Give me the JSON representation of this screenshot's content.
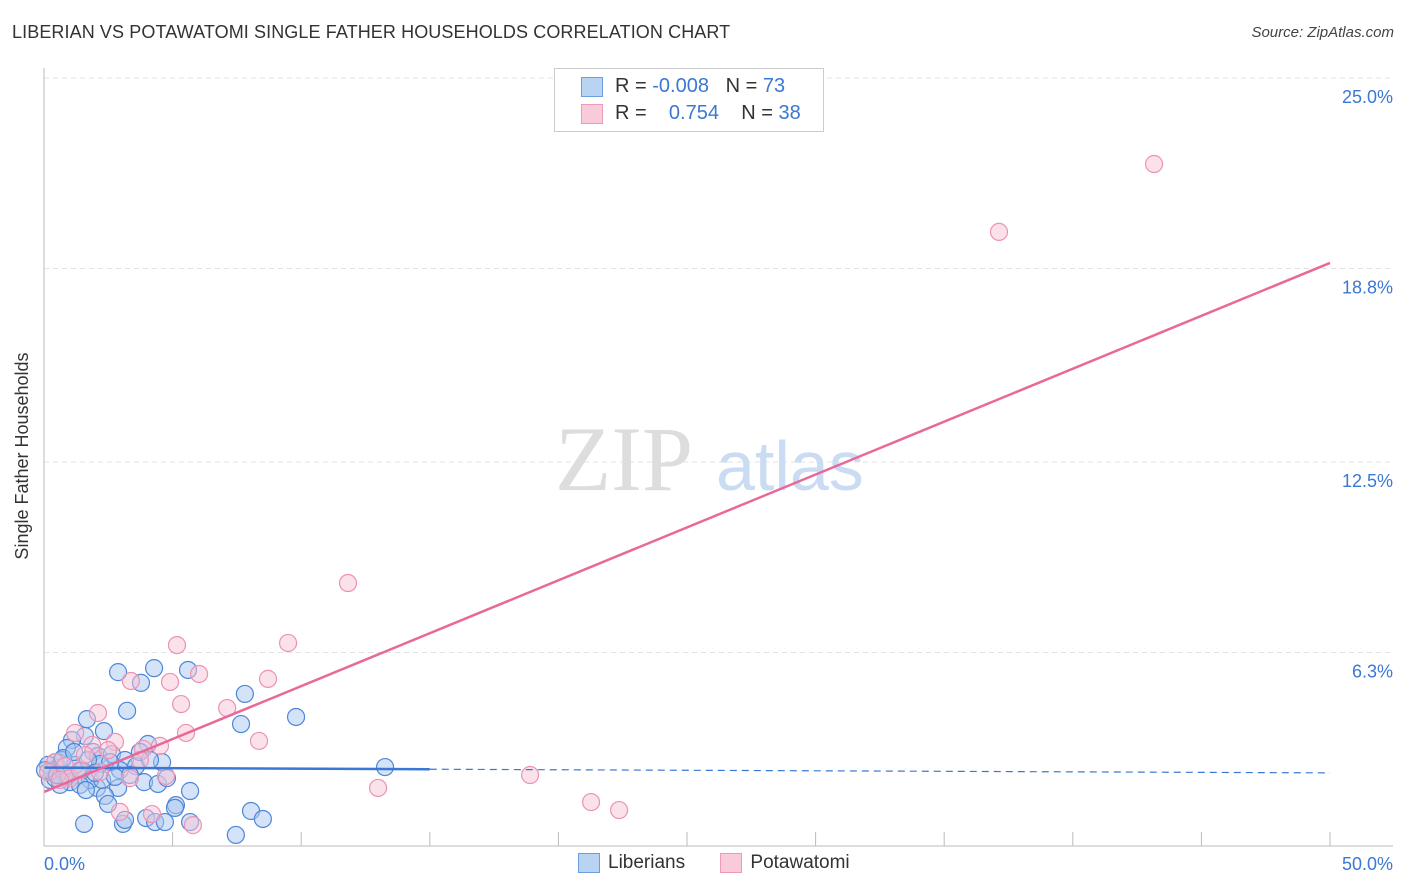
{
  "header": {
    "title": "LIBERIAN VS POTAWATOMI SINGLE FATHER HOUSEHOLDS CORRELATION CHART",
    "source": "Source: ZipAtlas.com"
  },
  "legend": {
    "rows": [
      {
        "r_label": "R =",
        "r_value": "-0.008",
        "n_label": "N =",
        "n_value": "73"
      },
      {
        "r_label": "R =",
        "r_value": "0.754",
        "n_label": "N =",
        "n_value": "38"
      }
    ]
  },
  "watermark": {
    "zip": "ZIP",
    "atlas": "atlas"
  },
  "colors": {
    "blue": "#3a78d4",
    "blue_fill": "#a9c8f0",
    "pink": "#e8689a",
    "pink_fill": "#f6bcd0",
    "tick_text": "#3a78d4"
  },
  "chart_data": {
    "type": "scatter",
    "title": "LIBERIAN VS POTAWATOMI SINGLE FATHER HOUSEHOLDS CORRELATION CHART",
    "xlabel": "",
    "ylabel": "Single Father Households",
    "xlim": [
      0,
      50
    ],
    "ylim": [
      0,
      25
    ],
    "x_tick_labels": [
      "0.0%",
      "50.0%"
    ],
    "y_ticks": [
      6.3,
      12.5,
      18.8,
      25.0
    ],
    "y_tick_labels": [
      "6.3%",
      "12.5%",
      "18.8%",
      "25.0%"
    ],
    "legend_placement": "bottom-center",
    "series": [
      {
        "name": "Liberians",
        "r": -0.008,
        "n": 73,
        "trend": {
          "x": [
            0,
            50
          ],
          "y": [
            2.55,
            2.38
          ],
          "solid_until": 15
        },
        "points": [
          [
            2.88,
            5.66
          ],
          [
            4.28,
            5.79
          ],
          [
            5.6,
            5.73
          ],
          [
            3.77,
            5.31
          ],
          [
            3.23,
            4.4
          ],
          [
            7.81,
            4.95
          ],
          [
            9.8,
            4.2
          ],
          [
            7.66,
            3.97
          ],
          [
            1.67,
            4.13
          ],
          [
            2.33,
            3.74
          ],
          [
            1.59,
            3.58
          ],
          [
            1.09,
            3.45
          ],
          [
            4.04,
            3.32
          ],
          [
            0.89,
            3.19
          ],
          [
            1.91,
            3.06
          ],
          [
            2.1,
            2.93
          ],
          [
            2.64,
            2.99
          ],
          [
            3.15,
            2.8
          ],
          [
            4.59,
            2.73
          ],
          [
            3.58,
            2.6
          ],
          [
            13.26,
            2.57
          ],
          [
            0.43,
            2.73
          ],
          [
            0.62,
            2.47
          ],
          [
            1.32,
            2.31
          ],
          [
            0.23,
            2.15
          ],
          [
            1.01,
            2.08
          ],
          [
            2.06,
            1.89
          ],
          [
            2.88,
            1.89
          ],
          [
            3.89,
            2.08
          ],
          [
            4.43,
            2.02
          ],
          [
            4.78,
            2.21
          ],
          [
            5.68,
            1.79
          ],
          [
            2.37,
            1.63
          ],
          [
            2.49,
            1.37
          ],
          [
            5.13,
            1.33
          ],
          [
            8.05,
            1.14
          ],
          [
            8.51,
            0.88
          ],
          [
            1.56,
            0.72
          ],
          [
            3.07,
            0.72
          ],
          [
            3.97,
            0.91
          ],
          [
            4.32,
            0.78
          ],
          [
            4.7,
            0.78
          ],
          [
            7.46,
            0.36
          ],
          [
            0.16,
            2.64
          ],
          [
            0.31,
            2.41
          ],
          [
            0.54,
            2.54
          ],
          [
            0.7,
            2.8
          ],
          [
            0.82,
            2.34
          ],
          [
            1.21,
            2.64
          ],
          [
            1.48,
            2.47
          ],
          [
            1.79,
            2.15
          ],
          [
            2.18,
            2.67
          ],
          [
            2.95,
            2.47
          ],
          [
            3.34,
            2.31
          ],
          [
            3.73,
            3.06
          ],
          [
            0.62,
            1.99
          ],
          [
            0.43,
            2.21
          ],
          [
            0.04,
            2.47
          ],
          [
            1.71,
            2.8
          ],
          [
            2.57,
            2.73
          ],
          [
            4.12,
            2.8
          ],
          [
            2.26,
            2.15
          ],
          [
            0.93,
            2.28
          ],
          [
            1.4,
            1.99
          ],
          [
            1.98,
            2.38
          ],
          [
            2.76,
            2.25
          ],
          [
            3.15,
            0.85
          ],
          [
            5.09,
            1.24
          ],
          [
            5.68,
            0.78
          ],
          [
            0.74,
            2.86
          ],
          [
            1.17,
            3.06
          ],
          [
            1.63,
            1.82
          ],
          [
            0.51,
            2.31
          ]
        ]
      },
      {
        "name": "Potawatomi",
        "r": 0.754,
        "n": 38,
        "trend": {
          "x": [
            0,
            50
          ],
          "y": [
            1.76,
            18.98
          ]
        },
        "points": [
          [
            43.16,
            22.2
          ],
          [
            37.13,
            19.99
          ],
          [
            11.82,
            8.56
          ],
          [
            5.17,
            6.54
          ],
          [
            9.49,
            6.61
          ],
          [
            3.38,
            5.37
          ],
          [
            4.9,
            5.34
          ],
          [
            6.03,
            5.6
          ],
          [
            8.71,
            5.44
          ],
          [
            5.33,
            4.62
          ],
          [
            7.12,
            4.49
          ],
          [
            2.1,
            4.33
          ],
          [
            8.36,
            3.42
          ],
          [
            5.52,
            3.68
          ],
          [
            1.21,
            3.68
          ],
          [
            2.76,
            3.39
          ],
          [
            3.85,
            3.16
          ],
          [
            4.51,
            3.26
          ],
          [
            1.87,
            3.29
          ],
          [
            2.49,
            3.12
          ],
          [
            0.43,
            2.73
          ],
          [
            0.82,
            2.6
          ],
          [
            0.16,
            2.41
          ],
          [
            1.01,
            2.21
          ],
          [
            2.18,
            2.41
          ],
          [
            3.34,
            2.21
          ],
          [
            4.74,
            2.28
          ],
          [
            12.99,
            1.89
          ],
          [
            18.9,
            2.31
          ],
          [
            21.27,
            1.43
          ],
          [
            22.36,
            1.17
          ],
          [
            2.95,
            1.11
          ],
          [
            4.2,
            1.04
          ],
          [
            5.79,
            0.68
          ],
          [
            3.73,
            2.8
          ],
          [
            1.4,
            2.47
          ],
          [
            0.62,
            2.15
          ],
          [
            1.59,
            2.96
          ]
        ]
      }
    ]
  }
}
